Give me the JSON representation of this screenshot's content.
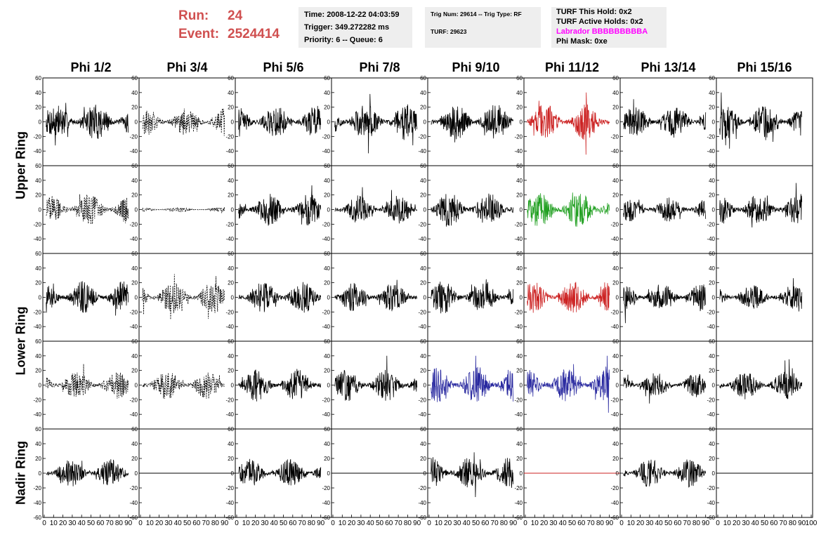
{
  "header": {
    "run_label": "Run:",
    "run_value": "24",
    "event_label": "Event:",
    "event_value": "2524414",
    "time_line": "Time: 2008-12-22 04:03:59",
    "trigger_line": "Trigger: 349.272282 ms",
    "priority_line": "Priority: 6 -- Queue: 6",
    "trig_line": "Trig Num: 29614 -- Trig Type: RF",
    "turf_line": "TURF: 29623",
    "hold_line": "TURF This Hold: 0x2",
    "active_line": "TURF Active Holds: 0x2",
    "labrador_line": "Labrador BBBBBBBBBA",
    "phimask_line": "Phi Mask: 0xe"
  },
  "colors": {
    "run": "#d05050",
    "labrador": "#ff00ff",
    "black": "#000000",
    "red": "#cc2222",
    "green": "#22a022",
    "blue": "#2a2aa0"
  },
  "chart_data": {
    "type": "line",
    "columns": [
      "Phi 1/2",
      "Phi 3/4",
      "Phi 5/6",
      "Phi 7/8",
      "Phi 9/10",
      "Phi 11/12",
      "Phi 13/14",
      "Phi 15/16"
    ],
    "rows": [
      "Upper Ring",
      "Upper Ring",
      "Lower Ring",
      "Lower Ring",
      "Nadir Ring"
    ],
    "row_labels": [
      "Upper Ring",
      "Lower Ring",
      "Nadir Ring"
    ],
    "xlim": [
      0,
      100
    ],
    "ylim": [
      -60,
      60
    ],
    "x_ticks": [
      0,
      10,
      20,
      30,
      40,
      50,
      60,
      70,
      80,
      90,
      100
    ],
    "y_ticks": [
      -40,
      -20,
      0,
      20,
      40,
      60
    ],
    "y_ticks_nadir": [
      -60,
      -40,
      -20,
      0,
      20,
      40,
      60
    ],
    "traces": [
      [
        {
          "c": "black",
          "a": 18,
          "s": "solid"
        },
        {
          "c": "black",
          "a": 14,
          "s": "dashed"
        },
        {
          "c": "black",
          "a": 16,
          "s": "solid"
        },
        {
          "c": "black",
          "a": 18,
          "s": "solid"
        },
        {
          "c": "black",
          "a": 18,
          "s": "solid"
        },
        {
          "c": "red",
          "a": 18,
          "s": "solid"
        },
        {
          "c": "black",
          "a": 16,
          "s": "solid"
        },
        {
          "c": "black",
          "a": 18,
          "s": "solid"
        }
      ],
      [
        {
          "c": "black",
          "a": 15,
          "s": "dashed"
        },
        {
          "c": "black",
          "a": 2,
          "s": "dashed"
        },
        {
          "c": "black",
          "a": 16,
          "s": "solid"
        },
        {
          "c": "black",
          "a": 14,
          "s": "solid"
        },
        {
          "c": "black",
          "a": 17,
          "s": "solid"
        },
        {
          "c": "green",
          "a": 18,
          "s": "solid"
        },
        {
          "c": "black",
          "a": 12,
          "s": "solid"
        },
        {
          "c": "black",
          "a": 16,
          "s": "solid"
        }
      ],
      [
        {
          "c": "black",
          "a": 16,
          "s": "solid"
        },
        {
          "c": "black",
          "a": 16,
          "s": "dashed"
        },
        {
          "c": "black",
          "a": 16,
          "s": "solid"
        },
        {
          "c": "black",
          "a": 14,
          "s": "solid"
        },
        {
          "c": "black",
          "a": 16,
          "s": "solid"
        },
        {
          "c": "red",
          "a": 16,
          "s": "solid"
        },
        {
          "c": "black",
          "a": 14,
          "s": "solid"
        },
        {
          "c": "black",
          "a": 12,
          "s": "solid"
        }
      ],
      [
        {
          "c": "black",
          "a": 14,
          "s": "dashed"
        },
        {
          "c": "black",
          "a": 14,
          "s": "dashed"
        },
        {
          "c": "black",
          "a": 16,
          "s": "solid"
        },
        {
          "c": "black",
          "a": 16,
          "s": "solid"
        },
        {
          "c": "blue",
          "a": 18,
          "s": "solid"
        },
        {
          "c": "blue",
          "a": 16,
          "s": "solid"
        },
        {
          "c": "black",
          "a": 12,
          "s": "solid"
        },
        {
          "c": "black",
          "a": 14,
          "s": "solid"
        }
      ],
      [
        {
          "c": "black",
          "a": 14,
          "s": "solid"
        },
        {
          "c": "black",
          "a": 0,
          "s": "solid"
        },
        {
          "c": "black",
          "a": 14,
          "s": "solid"
        },
        {
          "c": "black",
          "a": 0,
          "s": "solid"
        },
        {
          "c": "black",
          "a": 16,
          "s": "solid"
        },
        {
          "c": "red",
          "a": 0,
          "s": "solid"
        },
        {
          "c": "black",
          "a": 14,
          "s": "solid"
        },
        {
          "c": "black",
          "a": 0,
          "s": "solid"
        }
      ]
    ]
  }
}
